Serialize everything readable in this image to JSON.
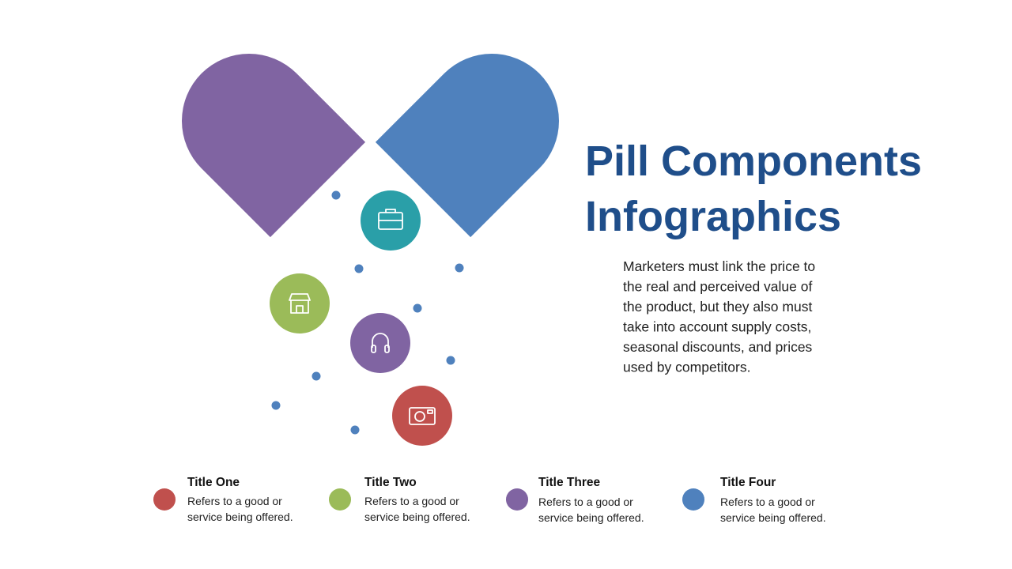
{
  "title": [
    "Pill Components",
    "Infographics"
  ],
  "body": [
    "Marketers must link the price to",
    "the real and perceived value of",
    "the product, but they also must",
    "take into account supply costs,",
    "seasonal discounts, and prices",
    "used by competitors."
  ],
  "items": [
    {
      "title": "Title One",
      "description": [
        "Refers to a good or",
        "service being offered."
      ]
    },
    {
      "title": "Title Two",
      "description": [
        "Refers to a good or",
        "service being offered."
      ]
    },
    {
      "title": "Title Three",
      "description": [
        "Refers to a good or",
        "service being offered."
      ]
    },
    {
      "title": "Title Four",
      "description": [
        "Refers to a good or",
        "service being offered."
      ]
    }
  ]
}
